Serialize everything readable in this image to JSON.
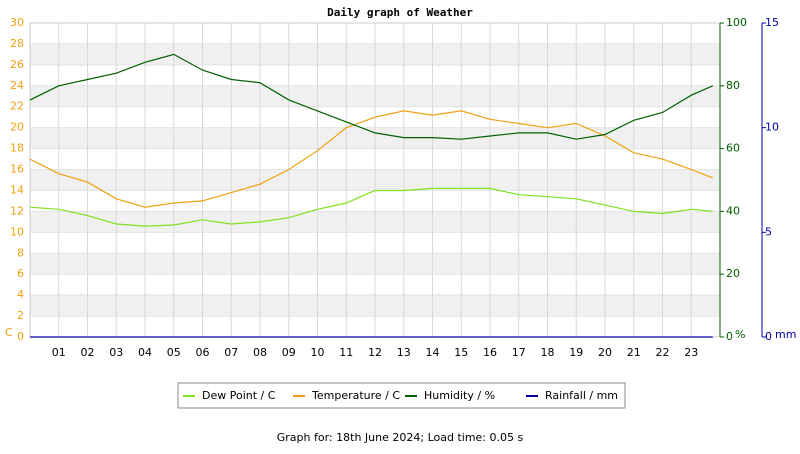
{
  "chart_data": {
    "type": "line",
    "title": "Daily graph of Weather",
    "footer": "Graph for: 18th June 2024; Load time: 0.05 s",
    "y_label": "C",
    "y2_label": "%",
    "y3_label": "mm",
    "x": [
      0,
      1,
      2,
      3,
      4,
      5,
      6,
      7,
      8,
      9,
      10,
      11,
      12,
      13,
      14,
      15,
      16,
      17,
      18,
      19,
      20,
      21,
      22,
      23,
      23.75
    ],
    "xlim": [
      0,
      24
    ],
    "xticks": [
      {
        "value": 1,
        "label": "01"
      },
      {
        "value": 2,
        "label": "02"
      },
      {
        "value": 3,
        "label": "03"
      },
      {
        "value": 4,
        "label": "04"
      },
      {
        "value": 5,
        "label": "05"
      },
      {
        "value": 6,
        "label": "06"
      },
      {
        "value": 7,
        "label": "07"
      },
      {
        "value": 8,
        "label": "08"
      },
      {
        "value": 9,
        "label": "09"
      },
      {
        "value": 10,
        "label": "10"
      },
      {
        "value": 11,
        "label": "11"
      },
      {
        "value": 12,
        "label": "12"
      },
      {
        "value": 13,
        "label": "13"
      },
      {
        "value": 14,
        "label": "14"
      },
      {
        "value": 15,
        "label": "15"
      },
      {
        "value": 16,
        "label": "16"
      },
      {
        "value": 17,
        "label": "17"
      },
      {
        "value": 18,
        "label": "18"
      },
      {
        "value": 19,
        "label": "19"
      },
      {
        "value": 20,
        "label": "20"
      },
      {
        "value": 21,
        "label": "21"
      },
      {
        "value": 22,
        "label": "22"
      },
      {
        "value": 23,
        "label": "23"
      }
    ],
    "ylim": [
      0,
      30
    ],
    "yticks": [
      0,
      2,
      4,
      6,
      8,
      10,
      12,
      14,
      16,
      18,
      20,
      22,
      24,
      26,
      28,
      30
    ],
    "y2lim": [
      0,
      100
    ],
    "y2ticks": [
      0,
      20,
      40,
      60,
      80,
      100
    ],
    "y3lim": [
      0,
      15
    ],
    "y3ticks": [
      0,
      5,
      10,
      15
    ],
    "grid": true,
    "series": [
      {
        "name": "Dew Point / C",
        "color": "#80e020",
        "values": [
          12.4,
          12.2,
          11.6,
          10.8,
          10.6,
          10.7,
          11.2,
          10.8,
          11,
          11.4,
          12.2,
          12.8,
          14,
          14,
          14.2,
          14.2,
          14.2,
          13.6,
          13.4,
          13.2,
          12.6,
          12,
          11.8,
          12.2,
          12
        ]
      },
      {
        "name": "Temperature / C",
        "color": "#f0a010",
        "values": [
          17,
          15.6,
          14.8,
          13.2,
          12.4,
          12.8,
          13,
          13.8,
          14.6,
          16,
          17.8,
          20,
          21,
          21.6,
          21.2,
          21.6,
          20.8,
          20.4,
          20,
          20.4,
          19.2,
          17.6,
          17,
          16,
          15.2
        ]
      },
      {
        "name": "Humidity / %",
        "color": "#006000",
        "axis": "y2",
        "values": [
          75.5,
          80,
          82,
          84,
          87.5,
          90,
          85,
          82,
          81,
          75.5,
          72,
          68.5,
          65,
          63.5,
          63.5,
          63,
          64,
          65,
          65,
          63,
          64.5,
          69,
          71.5,
          77,
          80
        ]
      },
      {
        "name": "Rainfall / mm",
        "color": "#0000a0",
        "axis": "y3",
        "values": [
          0,
          0,
          0,
          0,
          0,
          0,
          0,
          0,
          0,
          0,
          0,
          0,
          0,
          0,
          0,
          0,
          0,
          0,
          0,
          0,
          0,
          0,
          0,
          0,
          0
        ]
      }
    ]
  }
}
